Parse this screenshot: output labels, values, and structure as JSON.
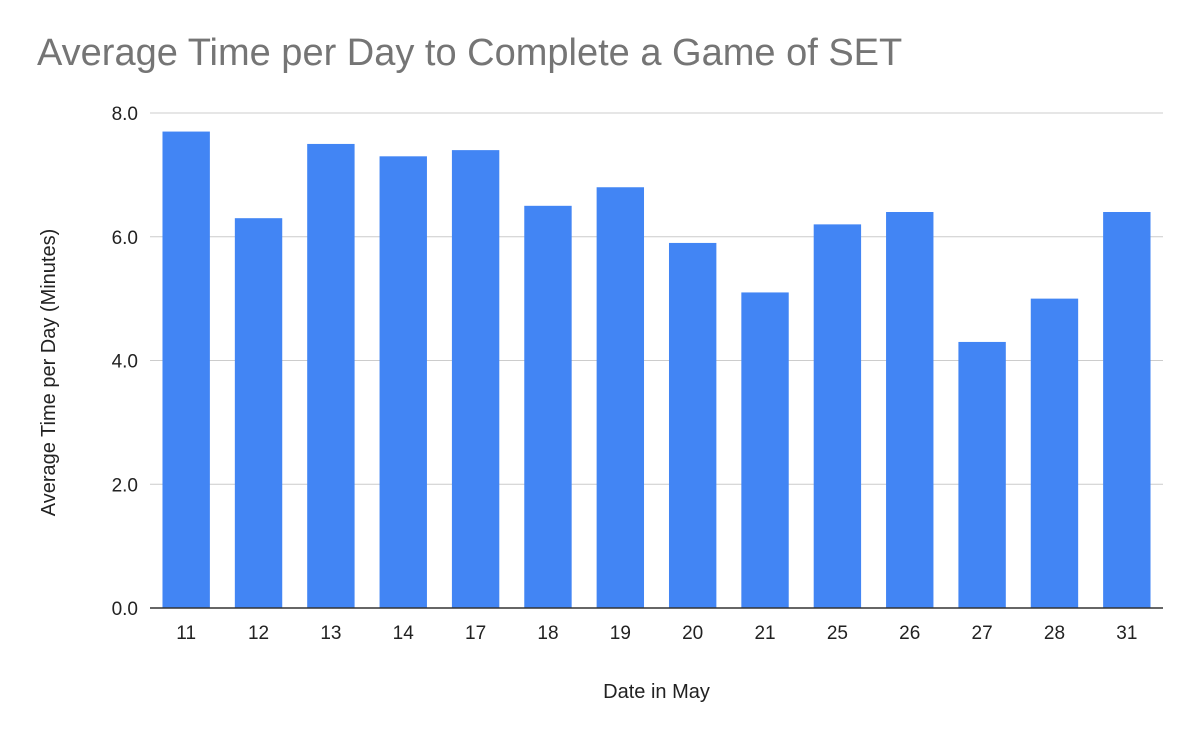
{
  "chart_data": {
    "type": "bar",
    "title": "Average Time per Day to Complete a Game of SET",
    "xlabel": "Date in May",
    "ylabel": "Average Time per Day (Minutes)",
    "categories": [
      "11",
      "12",
      "13",
      "14",
      "17",
      "18",
      "19",
      "20",
      "21",
      "25",
      "26",
      "27",
      "28",
      "31"
    ],
    "values": [
      7.7,
      6.3,
      7.5,
      7.3,
      7.4,
      6.5,
      6.8,
      5.9,
      5.1,
      6.2,
      6.4,
      4.3,
      5.0,
      6.4
    ],
    "ylim": [
      0,
      8
    ],
    "yticks": [
      0,
      2,
      4,
      6,
      8
    ],
    "ytick_labels": [
      "0.0",
      "2.0",
      "4.0",
      "6.0",
      "8.0"
    ],
    "bar_color": "#4285f4",
    "gridline_color": "#cccccc",
    "grid": true,
    "legend": "none"
  }
}
